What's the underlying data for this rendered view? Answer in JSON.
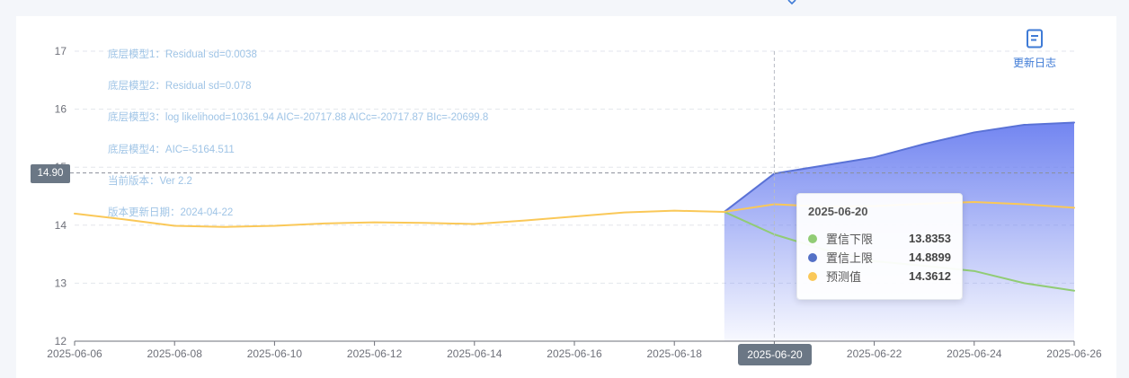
{
  "colors": {
    "band": "#6b7ff0",
    "upper_line": "#5a72d6",
    "lower_line": "#91cc75",
    "forecast_line": "#fac858",
    "tooltip_lower_dot": "#91cc75",
    "tooltip_upper_dot": "#5470c6",
    "tooltip_forecast_dot": "#fac858"
  },
  "info_lines": [
    "底层模型1：Residual sd=0.0038",
    "底层模型2：Residual sd=0.078",
    "底层模型3：log likelihood=10361.94 AIC=-20717.88 AICc=-20717.87 BIc=-20699.8",
    "底层模型4：AIC=-5164.511",
    "当前版本：Ver 2.2",
    "版本更新日期：2024-04-22"
  ],
  "changelog": {
    "label": "更新日志",
    "icon": "document-list-icon"
  },
  "crosshair": {
    "y_value_label": "14.90",
    "x_value_label": "2025-06-20"
  },
  "tooltip": {
    "date": "2025-06-20",
    "rows": [
      {
        "name": "置信下限",
        "value": "13.8353"
      },
      {
        "name": "置信上限",
        "value": "14.8899"
      },
      {
        "name": "预测值",
        "value": "14.3612"
      }
    ]
  },
  "chart_data": {
    "type": "line",
    "ylim": [
      12,
      17
    ],
    "yticks": [
      "12",
      "13",
      "14",
      "15",
      "16",
      "17"
    ],
    "xlim": [
      "2025-06-06",
      "2025-06-26"
    ],
    "xticks": [
      "2025-06-06",
      "2025-06-08",
      "2025-06-10",
      "2025-06-12",
      "2025-06-14",
      "2025-06-16",
      "2025-06-18",
      "2025-06-20",
      "2025-06-22",
      "2025-06-24",
      "2025-06-26"
    ],
    "grid": true,
    "series": [
      {
        "name": "预测值",
        "x": [
          "2025-06-06",
          "2025-06-07",
          "2025-06-08",
          "2025-06-09",
          "2025-06-10",
          "2025-06-11",
          "2025-06-12",
          "2025-06-13",
          "2025-06-14",
          "2025-06-15",
          "2025-06-16",
          "2025-06-17",
          "2025-06-18",
          "2025-06-19",
          "2025-06-20",
          "2025-06-21",
          "2025-06-22",
          "2025-06-23",
          "2025-06-24",
          "2025-06-25",
          "2025-06-26"
        ],
        "values": [
          14.2,
          14.1,
          13.99,
          13.97,
          13.99,
          14.03,
          14.05,
          14.04,
          14.02,
          14.08,
          14.15,
          14.22,
          14.25,
          14.23,
          14.36,
          14.32,
          14.33,
          14.37,
          14.4,
          14.36,
          14.3
        ]
      },
      {
        "name": "置信上限",
        "x": [
          "2025-06-19",
          "2025-06-20",
          "2025-06-21",
          "2025-06-22",
          "2025-06-23",
          "2025-06-24",
          "2025-06-25",
          "2025-06-26"
        ],
        "values": [
          14.23,
          14.89,
          15.03,
          15.17,
          15.4,
          15.6,
          15.73,
          15.77
        ]
      },
      {
        "name": "置信下限",
        "x": [
          "2025-06-19",
          "2025-06-20",
          "2025-06-21",
          "2025-06-22",
          "2025-06-23",
          "2025-06-24",
          "2025-06-25",
          "2025-06-26"
        ],
        "values": [
          14.23,
          13.84,
          13.58,
          13.38,
          13.3,
          13.21,
          13.0,
          12.87
        ]
      }
    ]
  }
}
